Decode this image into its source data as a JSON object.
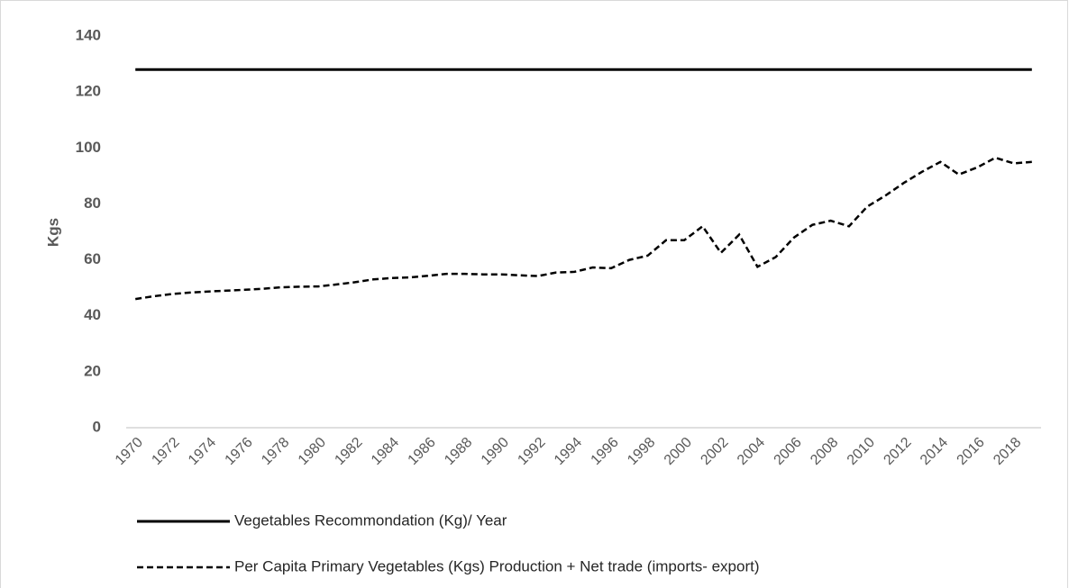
{
  "chart_data": {
    "type": "line",
    "y_label": "Kgs",
    "categories": [
      "1970",
      null,
      "1972",
      null,
      "1974",
      null,
      "1976",
      null,
      "1978",
      null,
      "1980",
      null,
      "1982",
      null,
      "1984",
      null,
      "1986",
      null,
      "1988",
      null,
      "1990",
      null,
      "1992",
      null,
      "1994",
      null,
      "1996",
      null,
      "1998",
      null,
      "2000",
      null,
      "2002",
      null,
      "2004",
      null,
      "2006",
      null,
      "2008",
      null,
      "2010",
      null,
      "2012",
      null,
      "2014",
      null,
      "2016",
      null,
      "2018",
      null
    ],
    "series": [
      {
        "name": "Vegetables Recommondation (Kg)/ Year",
        "color": "#000000",
        "dashed": false,
        "values": [
          128,
          128,
          128,
          128,
          128,
          128,
          128,
          128,
          128,
          128,
          128,
          128,
          128,
          128,
          128,
          128,
          128,
          128,
          128,
          128,
          128,
          128,
          128,
          128,
          128,
          128,
          128,
          128,
          128,
          128,
          128,
          128,
          128,
          128,
          128,
          128,
          128,
          128,
          128,
          128,
          128,
          128,
          128,
          128,
          128,
          128,
          128,
          128,
          128,
          128
        ]
      },
      {
        "name": "Per Capita  Primary Vegetables  (Kgs) Production + Net trade (imports- export)",
        "color": "#000000",
        "dashed": true,
        "values": [
          46,
          47,
          47.8,
          48.3,
          48.7,
          49,
          49.3,
          49.7,
          50.2,
          50.4,
          50.5,
          51.2,
          52,
          53,
          53.5,
          53.7,
          54.3,
          55,
          55,
          54.8,
          54.8,
          54.5,
          54.2,
          55.5,
          55.7,
          57.3,
          57,
          60,
          61.5,
          67,
          67,
          72,
          62.5,
          69,
          57.5,
          61,
          68,
          72.5,
          74,
          72,
          79,
          83,
          87.5,
          91.5,
          95,
          90.5,
          93,
          96.5,
          94.5,
          95
        ]
      }
    ],
    "ylim": [
      0,
      140
    ],
    "yticks": [
      0,
      20,
      40,
      60,
      80,
      100,
      120,
      140
    ],
    "grid": false,
    "legend": "bottom"
  }
}
